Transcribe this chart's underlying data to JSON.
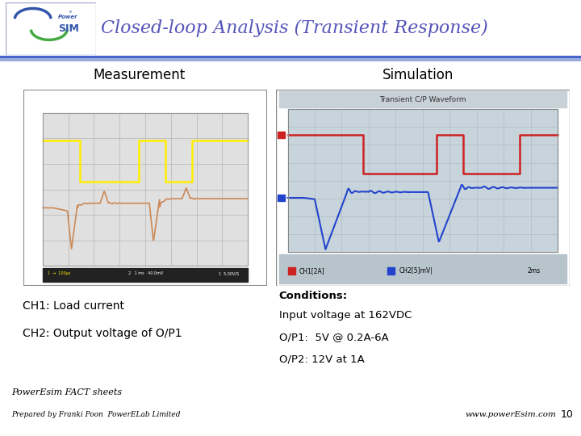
{
  "title": "Closed-loop Analysis (Transient Response)",
  "title_color": "#5555bb",
  "title_fontsize": 16,
  "bg_color": "#ffffff",
  "blue_line_color": "#4466cc",
  "measurement_label": "Measurement",
  "simulation_label": "Simulation",
  "ch1_label": "CH1: Load current",
  "ch2_label": "CH2: Output voltage of O/P1",
  "conditions_title": "Conditions:",
  "conditions_lines": [
    "Input voltage at 162VDC",
    "O/P1:  5V @ 0.2A-6A",
    "O/P2: 12V at 1A"
  ],
  "footer_left1": "PowerEsim FACT sheets",
  "footer_left2": "Prepared by Franki Poon  PowerELab Limited",
  "footer_right": "www.powerEsim.com",
  "footer_page": "10",
  "osc_outer_bg": "#b8b8b8",
  "osc_screen_bg": "#e0e0e0",
  "ch1_yellow": "#ffee00",
  "ch2_brown": "#cc8855",
  "sim_outer_bg": "#b0bac4",
  "sim_screen_bg": "#c8d4dc",
  "sim_ch1_color": "#cc2222",
  "sim_ch2_color": "#2244cc",
  "sim_legend_label1": "CH1[2A]",
  "sim_legend_label2": "CH2[5]mV|",
  "sim_time_label": "2ms",
  "sim_title": "Transient C/P Waveform"
}
